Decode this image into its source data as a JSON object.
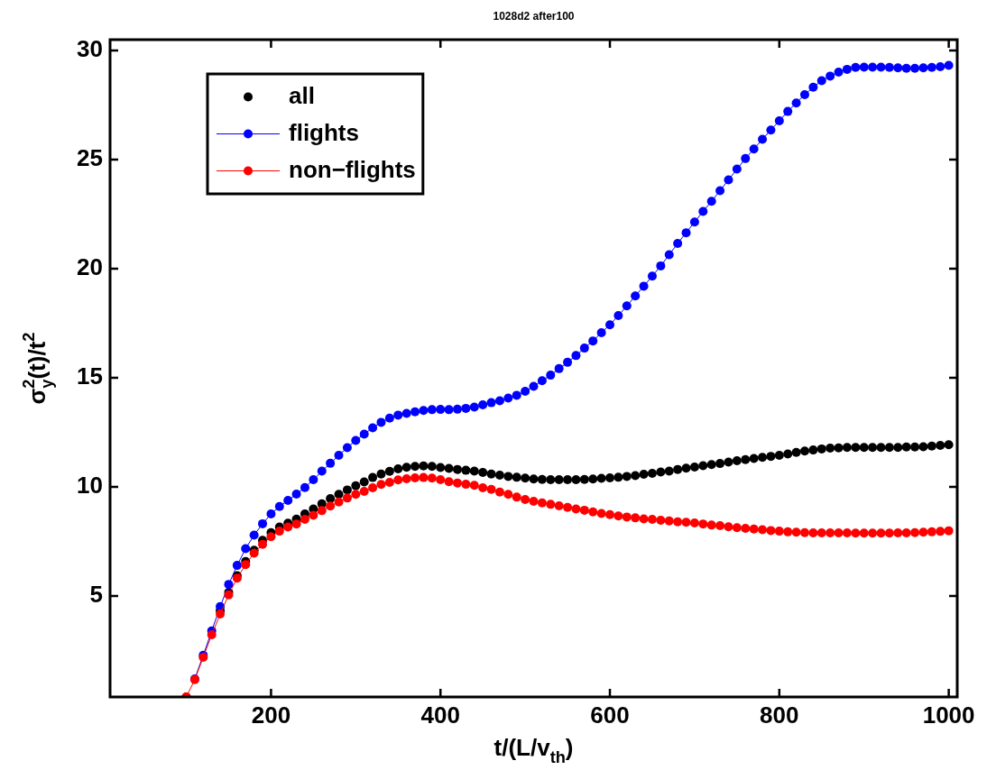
{
  "chart_data": {
    "type": "line",
    "title": "1028d2 after100",
    "xlabel": "t/(L/v$_{th}$)",
    "ylabel": "σ$_{y}$$^{2}$(t)/t$^{2}$",
    "x": [
      100,
      110,
      120,
      130,
      140,
      150,
      160,
      170,
      180,
      190,
      200,
      210,
      220,
      230,
      240,
      250,
      260,
      270,
      280,
      290,
      300,
      310,
      320,
      330,
      340,
      350,
      360,
      370,
      380,
      390,
      400,
      410,
      420,
      430,
      440,
      450,
      460,
      470,
      480,
      490,
      500,
      510,
      520,
      530,
      540,
      550,
      560,
      570,
      580,
      590,
      600,
      610,
      620,
      630,
      640,
      650,
      660,
      670,
      680,
      690,
      700,
      710,
      720,
      730,
      740,
      750,
      760,
      770,
      780,
      790,
      800,
      810,
      820,
      830,
      840,
      850,
      860,
      870,
      880,
      890,
      900,
      910,
      920,
      930,
      940,
      950,
      960,
      970,
      980,
      990,
      1000
    ],
    "xlim": [
      10,
      1010
    ],
    "xticks": [
      200,
      400,
      600,
      800,
      1000
    ],
    "ylim": [
      0.37,
      30.5
    ],
    "yticks": [
      5,
      10,
      15,
      20,
      25,
      30
    ],
    "grid": false,
    "legend": "top left",
    "marker": "circle",
    "line_style": "solid",
    "series": [
      {
        "name": "all",
        "type": "scatter",
        "color": "#000000",
        "values": [
          0.37,
          null,
          null,
          null,
          4.33,
          5.16,
          5.93,
          6.58,
          7.1,
          7.55,
          7.9,
          8.16,
          8.34,
          8.52,
          8.76,
          8.99,
          9.22,
          9.46,
          9.66,
          9.86,
          10.05,
          10.23,
          10.43,
          10.59,
          10.71,
          10.83,
          10.9,
          10.94,
          10.96,
          10.94,
          10.89,
          10.85,
          10.8,
          10.76,
          10.72,
          10.66,
          10.59,
          10.54,
          10.48,
          10.44,
          10.4,
          10.36,
          10.34,
          10.33,
          10.33,
          10.33,
          10.33,
          10.34,
          10.36,
          10.39,
          10.41,
          10.44,
          10.48,
          10.52,
          10.58,
          10.62,
          10.68,
          10.72,
          10.8,
          10.86,
          10.91,
          10.97,
          11.02,
          11.07,
          11.14,
          11.2,
          11.25,
          11.3,
          11.35,
          11.4,
          11.45,
          11.51,
          11.58,
          11.64,
          11.69,
          11.74,
          11.78,
          11.79,
          11.81,
          11.81,
          11.81,
          11.81,
          11.81,
          11.81,
          11.81,
          11.83,
          11.83,
          11.84,
          11.87,
          11.9,
          11.93
        ]
      },
      {
        "name": "flights",
        "type": "line",
        "color": "#0000ff",
        "values": [
          null,
          1.2,
          2.28,
          3.4,
          4.51,
          5.53,
          6.4,
          7.17,
          7.79,
          8.31,
          8.76,
          9.1,
          9.38,
          9.67,
          9.97,
          10.33,
          10.72,
          11.08,
          11.45,
          11.8,
          12.13,
          12.42,
          12.71,
          12.96,
          13.15,
          13.29,
          13.37,
          13.44,
          13.5,
          13.54,
          13.55,
          13.54,
          13.56,
          13.6,
          13.66,
          13.76,
          13.86,
          13.95,
          14.07,
          14.2,
          14.38,
          14.61,
          14.87,
          15.12,
          15.42,
          15.71,
          16.02,
          16.36,
          16.69,
          17.07,
          17.43,
          17.85,
          18.3,
          18.75,
          19.2,
          19.66,
          20.13,
          20.64,
          21.16,
          21.65,
          22.14,
          22.63,
          23.09,
          23.58,
          24.07,
          24.57,
          25.05,
          25.49,
          25.93,
          26.36,
          26.78,
          27.21,
          27.6,
          27.98,
          28.32,
          28.62,
          28.83,
          29.01,
          29.14,
          29.23,
          29.24,
          29.24,
          29.24,
          29.23,
          29.21,
          29.19,
          29.19,
          29.21,
          29.23,
          29.26,
          29.32
        ]
      },
      {
        "name": "non−flights",
        "type": "line",
        "color": "#ff0000",
        "values": [
          0.37,
          1.17,
          2.19,
          3.22,
          4.17,
          5.05,
          5.82,
          6.44,
          6.96,
          7.37,
          7.72,
          7.97,
          8.16,
          8.3,
          8.51,
          8.7,
          8.91,
          9.12,
          9.31,
          9.49,
          9.66,
          9.79,
          9.96,
          10.11,
          10.21,
          10.32,
          10.37,
          10.41,
          10.43,
          10.4,
          10.33,
          10.24,
          10.18,
          10.12,
          10.07,
          9.96,
          9.89,
          9.76,
          9.66,
          9.53,
          9.42,
          9.34,
          9.27,
          9.2,
          9.13,
          9.06,
          8.99,
          8.93,
          8.85,
          8.78,
          8.73,
          8.67,
          8.62,
          8.58,
          8.53,
          8.51,
          8.47,
          8.44,
          8.4,
          8.38,
          8.35,
          8.3,
          8.25,
          8.22,
          8.17,
          8.13,
          8.1,
          8.07,
          8.04,
          8.0,
          7.97,
          7.94,
          7.92,
          7.9,
          7.89,
          7.89,
          7.89,
          7.89,
          7.89,
          7.88,
          7.88,
          7.88,
          7.88,
          7.88,
          7.89,
          7.89,
          7.9,
          7.92,
          7.94,
          7.96,
          7.99
        ]
      }
    ]
  }
}
